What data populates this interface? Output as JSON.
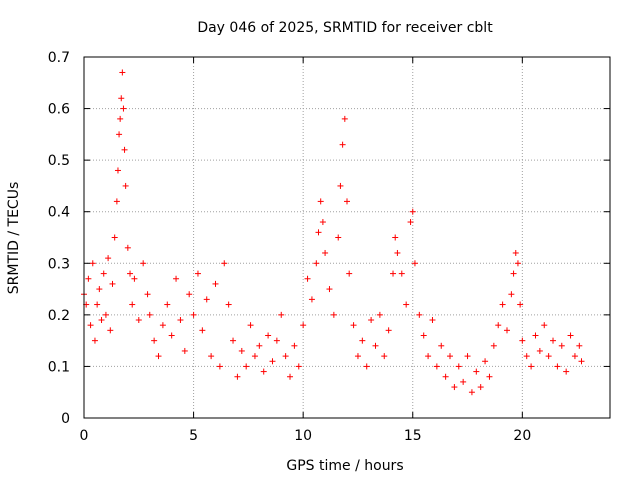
{
  "chart_data": {
    "type": "scatter",
    "title": "Day 046 of 2025, SRMTID for receiver cblt",
    "xlabel": "GPS time / hours",
    "ylabel": "SRMTID / TECUs",
    "xlim": [
      0,
      24
    ],
    "ylim": [
      0,
      0.7
    ],
    "xticks": [
      0,
      5,
      10,
      15,
      20
    ],
    "xtick_labels": [
      "0",
      "5",
      "10",
      "15",
      "20"
    ],
    "yticks": [
      0,
      0.1,
      0.2,
      0.3,
      0.4,
      0.5,
      0.6,
      0.7
    ],
    "ytick_labels": [
      "0",
      "0.1",
      "0.2",
      "0.3",
      "0.4",
      "0.5",
      "0.6",
      "0.7"
    ],
    "grid": true,
    "marker": "plus",
    "marker_color": "#ff0000",
    "series": [
      {
        "name": "SRMTID",
        "points": [
          [
            0.0,
            0.24
          ],
          [
            0.1,
            0.22
          ],
          [
            0.2,
            0.27
          ],
          [
            0.3,
            0.18
          ],
          [
            0.4,
            0.3
          ],
          [
            0.5,
            0.15
          ],
          [
            0.6,
            0.22
          ],
          [
            0.7,
            0.25
          ],
          [
            0.8,
            0.19
          ],
          [
            0.9,
            0.28
          ],
          [
            1.0,
            0.2
          ],
          [
            1.1,
            0.31
          ],
          [
            1.2,
            0.17
          ],
          [
            1.3,
            0.26
          ],
          [
            1.4,
            0.35
          ],
          [
            1.5,
            0.42
          ],
          [
            1.55,
            0.48
          ],
          [
            1.6,
            0.55
          ],
          [
            1.65,
            0.58
          ],
          [
            1.7,
            0.62
          ],
          [
            1.75,
            0.67
          ],
          [
            1.8,
            0.6
          ],
          [
            1.85,
            0.52
          ],
          [
            1.9,
            0.45
          ],
          [
            2.0,
            0.33
          ],
          [
            2.1,
            0.28
          ],
          [
            2.2,
            0.22
          ],
          [
            2.3,
            0.27
          ],
          [
            2.5,
            0.19
          ],
          [
            2.7,
            0.3
          ],
          [
            2.9,
            0.24
          ],
          [
            3.0,
            0.2
          ],
          [
            3.2,
            0.15
          ],
          [
            3.4,
            0.12
          ],
          [
            3.6,
            0.18
          ],
          [
            3.8,
            0.22
          ],
          [
            4.0,
            0.16
          ],
          [
            4.2,
            0.27
          ],
          [
            4.4,
            0.19
          ],
          [
            4.6,
            0.13
          ],
          [
            4.8,
            0.24
          ],
          [
            5.0,
            0.2
          ],
          [
            5.2,
            0.28
          ],
          [
            5.4,
            0.17
          ],
          [
            5.6,
            0.23
          ],
          [
            5.8,
            0.12
          ],
          [
            6.0,
            0.26
          ],
          [
            6.2,
            0.1
          ],
          [
            6.4,
            0.3
          ],
          [
            6.6,
            0.22
          ],
          [
            6.8,
            0.15
          ],
          [
            7.0,
            0.08
          ],
          [
            7.2,
            0.13
          ],
          [
            7.4,
            0.1
          ],
          [
            7.6,
            0.18
          ],
          [
            7.8,
            0.12
          ],
          [
            8.0,
            0.14
          ],
          [
            8.2,
            0.09
          ],
          [
            8.4,
            0.16
          ],
          [
            8.6,
            0.11
          ],
          [
            8.8,
            0.15
          ],
          [
            9.0,
            0.2
          ],
          [
            9.2,
            0.12
          ],
          [
            9.4,
            0.08
          ],
          [
            9.6,
            0.14
          ],
          [
            9.8,
            0.1
          ],
          [
            10.0,
            0.18
          ],
          [
            10.2,
            0.27
          ],
          [
            10.4,
            0.23
          ],
          [
            10.6,
            0.3
          ],
          [
            10.7,
            0.36
          ],
          [
            10.8,
            0.42
          ],
          [
            10.9,
            0.38
          ],
          [
            11.0,
            0.32
          ],
          [
            11.2,
            0.25
          ],
          [
            11.4,
            0.2
          ],
          [
            11.6,
            0.35
          ],
          [
            11.7,
            0.45
          ],
          [
            11.8,
            0.53
          ],
          [
            11.9,
            0.58
          ],
          [
            12.0,
            0.42
          ],
          [
            12.1,
            0.28
          ],
          [
            12.3,
            0.18
          ],
          [
            12.5,
            0.12
          ],
          [
            12.7,
            0.15
          ],
          [
            12.9,
            0.1
          ],
          [
            13.1,
            0.19
          ],
          [
            13.3,
            0.14
          ],
          [
            13.5,
            0.2
          ],
          [
            13.7,
            0.12
          ],
          [
            13.9,
            0.17
          ],
          [
            14.1,
            0.28
          ],
          [
            14.2,
            0.35
          ],
          [
            14.3,
            0.32
          ],
          [
            14.5,
            0.28
          ],
          [
            14.7,
            0.22
          ],
          [
            14.9,
            0.38
          ],
          [
            15.0,
            0.4
          ],
          [
            15.1,
            0.3
          ],
          [
            15.3,
            0.2
          ],
          [
            15.5,
            0.16
          ],
          [
            15.7,
            0.12
          ],
          [
            15.9,
            0.19
          ],
          [
            16.1,
            0.1
          ],
          [
            16.3,
            0.14
          ],
          [
            16.5,
            0.08
          ],
          [
            16.7,
            0.12
          ],
          [
            16.9,
            0.06
          ],
          [
            17.1,
            0.1
          ],
          [
            17.3,
            0.07
          ],
          [
            17.5,
            0.12
          ],
          [
            17.7,
            0.05
          ],
          [
            17.9,
            0.09
          ],
          [
            18.1,
            0.06
          ],
          [
            18.3,
            0.11
          ],
          [
            18.5,
            0.08
          ],
          [
            18.7,
            0.14
          ],
          [
            18.9,
            0.18
          ],
          [
            19.1,
            0.22
          ],
          [
            19.3,
            0.17
          ],
          [
            19.5,
            0.24
          ],
          [
            19.6,
            0.28
          ],
          [
            19.7,
            0.32
          ],
          [
            19.8,
            0.3
          ],
          [
            19.9,
            0.22
          ],
          [
            20.0,
            0.15
          ],
          [
            20.2,
            0.12
          ],
          [
            20.4,
            0.1
          ],
          [
            20.6,
            0.16
          ],
          [
            20.8,
            0.13
          ],
          [
            21.0,
            0.18
          ],
          [
            21.2,
            0.12
          ],
          [
            21.4,
            0.15
          ],
          [
            21.6,
            0.1
          ],
          [
            21.8,
            0.14
          ],
          [
            22.0,
            0.09
          ],
          [
            22.2,
            0.16
          ],
          [
            22.4,
            0.12
          ],
          [
            22.6,
            0.14
          ],
          [
            22.7,
            0.11
          ]
        ]
      }
    ]
  }
}
